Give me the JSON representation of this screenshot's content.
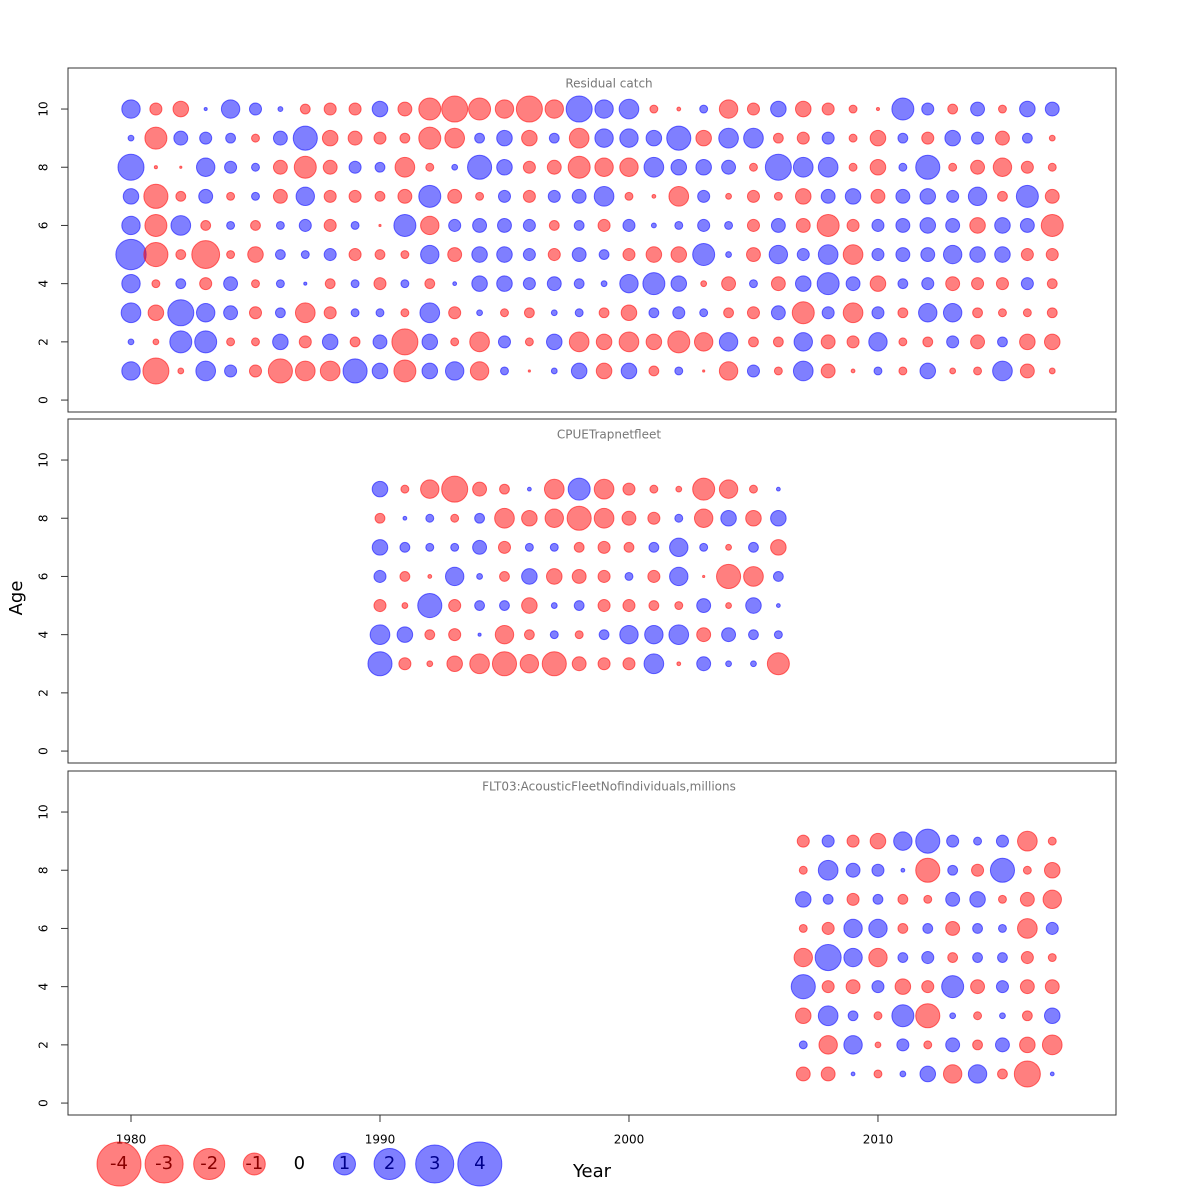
{
  "chart_data": {
    "type": "bubble",
    "x_label": "Year",
    "y_label": "Age",
    "xlim": [
      1977.47,
      2019.56
    ],
    "xticks": [
      1980,
      1990,
      2000,
      2010
    ],
    "ylim": [
      -0.41,
      11.41
    ],
    "yticks": [
      0,
      2,
      4,
      6,
      8,
      10
    ],
    "positive_color": "#0000ff",
    "negative_color": "#ff0000",
    "alpha": 0.5,
    "legend_values": [
      -4,
      -3,
      -2,
      -1,
      0,
      1,
      2,
      3,
      4
    ],
    "panels": [
      {
        "title": "Residual catch",
        "x": [
          1980,
          1981,
          1982,
          1983,
          1984,
          1985,
          1986,
          1987,
          1988,
          1989,
          1990,
          1991,
          1992,
          1993,
          1994,
          1995,
          1996,
          1997,
          1998,
          1999,
          2000,
          2001,
          2002,
          2003,
          2004,
          2005,
          2006,
          2007,
          2008,
          2009,
          2010,
          2011,
          2012,
          2013,
          2014,
          2015,
          2016,
          2017
        ],
        "y": [
          1,
          2,
          3,
          4,
          5,
          6,
          7,
          8,
          9,
          10
        ],
        "values": [
          [
            0.7,
            -1.4,
            -0.07,
            0.8,
            0.3,
            -0.3,
            -1.2,
            -0.8,
            -0.8,
            1.2,
            0.5,
            -1,
            0.5,
            0.7,
            -0.7,
            0.13,
            -0.01,
            0.07,
            0.5,
            -0.5,
            0.5,
            -0.2,
            0.13,
            -0.01,
            -0.7,
            0.3,
            -0.13,
            0.8,
            -0.4,
            -0.03,
            0.13,
            -0.13,
            0.5,
            -0.07,
            -0.13,
            0.8,
            -0.4,
            -0.07
          ],
          [
            0.07,
            -0.07,
            1,
            1,
            -0.13,
            -0.13,
            0.5,
            -0.3,
            0.5,
            -0.2,
            0.4,
            -1.4,
            0.5,
            -0.13,
            -0.8,
            0.3,
            -0.13,
            0.5,
            -0.8,
            -0.5,
            -0.8,
            -0.5,
            -1,
            -0.7,
            0.7,
            -0.2,
            -0.2,
            0.7,
            -0.4,
            -0.3,
            0.7,
            -0.13,
            -0.2,
            0.3,
            -0.4,
            0.2,
            -0.5,
            -0.5
          ],
          [
            0.8,
            -0.5,
            1.4,
            0.7,
            0.4,
            -0.3,
            0.2,
            -0.8,
            -0.3,
            0.13,
            0.13,
            -0.13,
            0.8,
            -0.3,
            0.07,
            -0.13,
            -0.2,
            0.07,
            0.13,
            -0.2,
            -0.5,
            0.2,
            0.3,
            0.13,
            -0.2,
            -0.3,
            0.4,
            -1,
            0.3,
            -0.8,
            0.3,
            -0.2,
            0.7,
            0.7,
            -0.2,
            -0.13,
            -0.13,
            -0.2
          ],
          [
            0.7,
            -0.13,
            0.2,
            -0.3,
            0.4,
            -0.13,
            0.13,
            0.02,
            -0.2,
            0.13,
            -0.3,
            0.13,
            -0.2,
            0.03,
            0.5,
            0.5,
            0.3,
            0.4,
            0.2,
            0.07,
            0.7,
            1,
            0.5,
            -0.07,
            -0.4,
            0.13,
            -0.4,
            0.5,
            1,
            0.4,
            -0.5,
            0.2,
            0.3,
            -0.4,
            -0.3,
            -0.3,
            0.3,
            -0.2
          ],
          [
            1.9,
            -1.2,
            -0.2,
            -1.6,
            -0.13,
            -0.5,
            0.2,
            0.13,
            0.3,
            -0.3,
            -0.2,
            -0.13,
            0.7,
            -0.4,
            0.5,
            0.5,
            0.3,
            -0.3,
            0.4,
            0.2,
            -0.3,
            -0.5,
            -0.5,
            1,
            0.07,
            -0.4,
            0.7,
            0.3,
            0.8,
            -0.8,
            0.3,
            0.4,
            0.4,
            0.7,
            0.5,
            0.5,
            -0.3,
            -0.3
          ],
          [
            0.7,
            -1,
            0.8,
            -0.2,
            0.13,
            -0.2,
            0.13,
            0.3,
            -0.3,
            0.13,
            -0.01,
            1,
            -0.7,
            0.3,
            0.4,
            0.4,
            0.3,
            -0.2,
            0.2,
            -0.3,
            0.3,
            0.05,
            0.13,
            0.3,
            0.13,
            -0.3,
            0.4,
            -0.4,
            -1,
            -0.3,
            0.3,
            0.4,
            0.5,
            0.4,
            -0.5,
            0.5,
            0.4,
            -1
          ],
          [
            0.5,
            -1.2,
            -0.2,
            0.4,
            -0.13,
            0.13,
            -0.4,
            0.7,
            -0.3,
            -0.3,
            -0.2,
            -0.4,
            1,
            -0.4,
            -0.13,
            0.3,
            -0.3,
            0.3,
            0.4,
            0.8,
            -0.13,
            -0.03,
            -0.8,
            0.3,
            -0.07,
            -0.3,
            -0.13,
            -0.5,
            0.4,
            0.5,
            -0.4,
            0.4,
            0.5,
            0.3,
            0.7,
            -0.2,
            1,
            -0.4
          ],
          [
            1.4,
            -0.02,
            -0.01,
            0.7,
            0.3,
            0.13,
            -0.4,
            -1,
            -0.4,
            0.3,
            0.2,
            -0.8,
            -0.13,
            0.07,
            1.2,
            0.5,
            -0.3,
            -0.4,
            -1,
            -0.7,
            -0.7,
            0.8,
            0.5,
            0.5,
            0.4,
            -0.13,
            1.4,
            0.8,
            0.8,
            -0.13,
            -0.5,
            0.13,
            1.2,
            -0.13,
            -0.4,
            -0.7,
            -0.3,
            -0.13
          ],
          [
            0.07,
            -1,
            0.4,
            0.3,
            0.2,
            -0.13,
            0.4,
            1.2,
            -0.5,
            -0.4,
            -0.3,
            -0.2,
            -1,
            -0.8,
            0.2,
            0.5,
            -0.5,
            0.2,
            -0.8,
            0.7,
            0.7,
            0.5,
            1.2,
            -0.5,
            0.8,
            0.8,
            -0.2,
            -0.3,
            0.3,
            -0.13,
            -0.5,
            0.2,
            -0.3,
            0.5,
            0.3,
            -0.4,
            0.2,
            -0.07
          ],
          [
            0.7,
            -0.3,
            -0.5,
            0.02,
            0.7,
            0.3,
            0.05,
            -0.2,
            -0.3,
            -0.3,
            0.5,
            -0.4,
            -1,
            -1.4,
            -1,
            -0.7,
            -1.4,
            -0.7,
            1.4,
            0.7,
            0.8,
            -0.13,
            -0.03,
            0.13,
            -0.7,
            -0.3,
            0.5,
            -0.5,
            -0.3,
            -0.13,
            -0.02,
            1,
            0.3,
            -0.2,
            0.4,
            -0.13,
            0.5,
            0.4
          ]
        ]
      },
      {
        "title": "CPUETrapnetfleet",
        "x": [
          1990,
          1991,
          1992,
          1993,
          1994,
          1995,
          1996,
          1997,
          1998,
          1999,
          2000,
          2001,
          2002,
          2003,
          2004,
          2005,
          2006
        ],
        "y": [
          3,
          4,
          5,
          6,
          7,
          8,
          9
        ],
        "values": [
          [
            1.2,
            -0.3,
            -0.07,
            -0.5,
            -0.8,
            -1.2,
            -0.7,
            -1.2,
            -0.4,
            -0.3,
            -0.3,
            0.8,
            -0.03,
            0.4,
            0.07,
            0.07,
            -1
          ],
          [
            0.8,
            0.5,
            -0.2,
            -0.3,
            0.02,
            -0.7,
            -0.2,
            0.13,
            -0.13,
            0.2,
            0.7,
            0.7,
            0.8,
            -0.4,
            0.4,
            0.2,
            0.13
          ],
          [
            -0.3,
            -0.07,
            1.2,
            -0.3,
            0.2,
            0.2,
            -0.5,
            0.07,
            0.2,
            -0.3,
            -0.3,
            -0.2,
            -0.13,
            0.4,
            -0.07,
            0.5,
            0.03
          ],
          [
            0.3,
            -0.2,
            -0.03,
            0.7,
            0.07,
            -0.2,
            0.5,
            -0.5,
            -0.4,
            -0.3,
            0.13,
            -0.3,
            0.7,
            -0.01,
            -1.2,
            -0.8,
            0.2
          ],
          [
            0.5,
            0.2,
            0.13,
            0.13,
            0.4,
            -0.3,
            0.13,
            0.13,
            -0.2,
            -0.3,
            -0.2,
            0.2,
            0.7,
            0.13,
            -0.07,
            0.2,
            -0.5
          ],
          [
            -0.2,
            0.03,
            0.13,
            -0.13,
            0.2,
            -0.8,
            -0.5,
            -0.7,
            -1.2,
            -0.8,
            -0.4,
            -0.3,
            0.13,
            -0.7,
            0.5,
            -0.5,
            0.5
          ],
          [
            0.5,
            -0.13,
            -0.7,
            -1.4,
            -0.4,
            -0.2,
            0.03,
            -0.8,
            1,
            -0.8,
            -0.3,
            -0.13,
            -0.07,
            -1,
            -0.7,
            -0.13,
            0.03
          ]
        ]
      },
      {
        "title": "FLT03:AcousticFleetNofindividuals,millions",
        "x": [
          2007,
          2008,
          2009,
          2010,
          2011,
          2012,
          2013,
          2014,
          2015,
          2016,
          2017
        ],
        "y": [
          1,
          2,
          3,
          4,
          5,
          6,
          7,
          8,
          9
        ],
        "values": [
          [
            -0.4,
            -0.4,
            0.03,
            -0.13,
            0.07,
            0.5,
            -0.7,
            0.7,
            -0.2,
            -1.4,
            0.03
          ],
          [
            0.13,
            -0.7,
            0.7,
            -0.07,
            0.3,
            -0.13,
            0.4,
            -0.2,
            0.4,
            -0.5,
            -0.8
          ],
          [
            -0.5,
            0.8,
            0.2,
            -0.13,
            1,
            -1.2,
            0.07,
            -0.13,
            0.07,
            -0.2,
            0.5
          ],
          [
            1.2,
            -0.3,
            -0.4,
            0.3,
            -0.5,
            -0.3,
            1,
            -0.4,
            0.3,
            -0.4,
            -0.4
          ],
          [
            -0.7,
            1.4,
            0.7,
            -0.7,
            0.2,
            0.3,
            -0.2,
            0.2,
            0.2,
            -0.3,
            -0.13
          ],
          [
            -0.13,
            -0.3,
            0.7,
            0.7,
            -0.2,
            0.2,
            -0.4,
            0.2,
            0.13,
            -0.8,
            0.3
          ],
          [
            0.5,
            0.2,
            -0.3,
            0.2,
            -0.2,
            -0.13,
            0.4,
            0.5,
            -0.13,
            -0.4,
            -0.7
          ],
          [
            -0.13,
            0.8,
            0.4,
            0.3,
            0.03,
            -1.2,
            0.2,
            -0.3,
            1.2,
            -0.13,
            -0.5
          ],
          [
            -0.3,
            0.3,
            -0.3,
            -0.5,
            0.7,
            1.2,
            0.3,
            0.13,
            0.3,
            -0.8,
            -0.13
          ]
        ]
      }
    ]
  }
}
